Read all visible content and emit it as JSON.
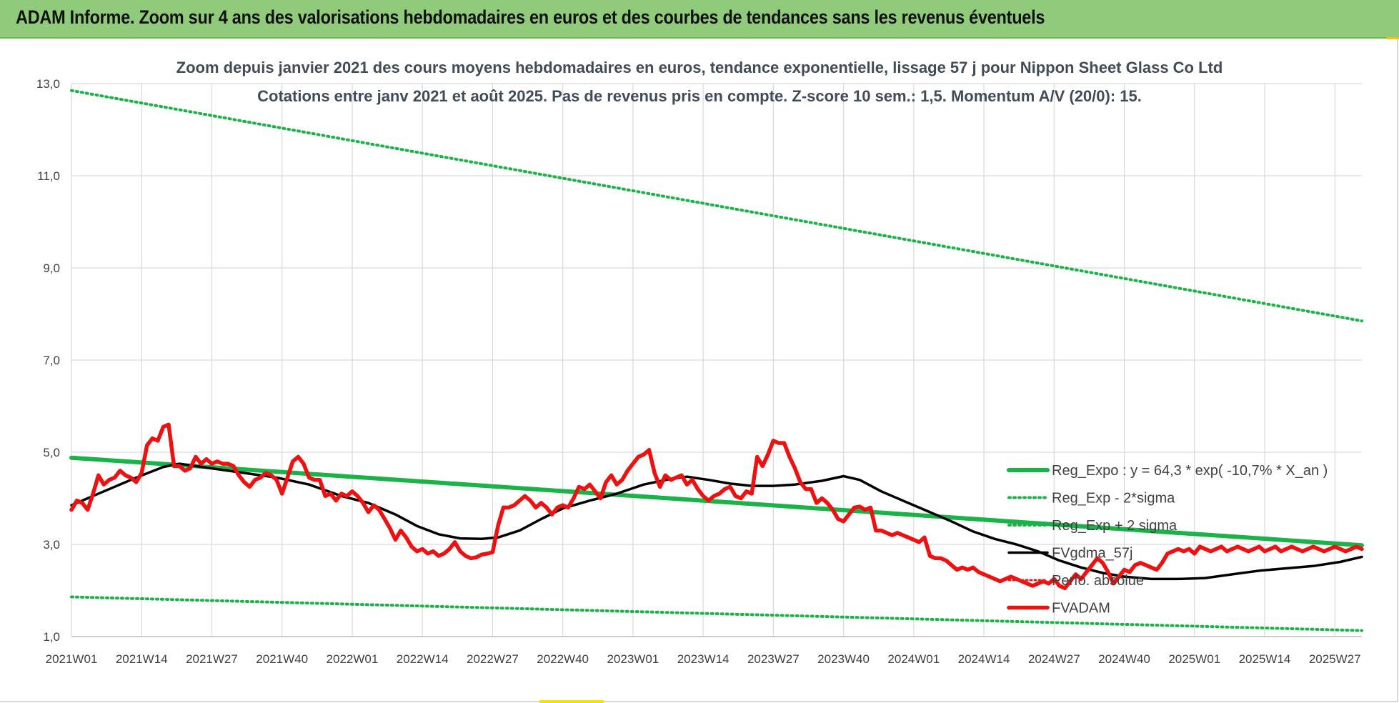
{
  "page": {
    "banner_title": "ADAM Informe. Zoom sur 4 ans des valorisations hebdomadaires en euros et des courbes de tendances sans les revenus éventuels"
  },
  "chart_data": {
    "type": "line",
    "title": "Zoom depuis janvier 2021 des cours moyens hebdomadaires en euros, tendance exponentielle, lissage 57 j pour Nippon Sheet Glass Co Ltd",
    "subtitle": "Cotations entre janv 2021 et août 2025.  Pas de revenus pris en compte. Z-score 10 sem.: 1,5. Momentum A/V (20/0): 15.",
    "xlabel": "",
    "ylabel": "",
    "ylim": [
      1.0,
      13.0
    ],
    "y_ticks": [
      "1,0",
      "3,0",
      "5,0",
      "7,0",
      "9,0",
      "11,0",
      "13,0"
    ],
    "y_tick_values": [
      1,
      3,
      5,
      7,
      9,
      11,
      13
    ],
    "x_ticks": [
      "2021W01",
      "2021W14",
      "2021W27",
      "2021W40",
      "2022W01",
      "2022W14",
      "2022W27",
      "2022W40",
      "2023W01",
      "2023W14",
      "2023W27",
      "2023W40",
      "2024W01",
      "2024W14",
      "2024W27",
      "2024W40",
      "2025W01",
      "2025W14",
      "2025W27"
    ],
    "x_tick_weeks": [
      0,
      13,
      26,
      39,
      52,
      65,
      78,
      91,
      104,
      117,
      130,
      143,
      156,
      169,
      182,
      195,
      208,
      221,
      234
    ],
    "week_count": 240,
    "grid": true,
    "legend_position": "right",
    "colors": {
      "reg_expo": "#1ab347",
      "band": "#1ab347",
      "fvgdma": "#000000",
      "perf": "#e0201a",
      "fvadam": "#ee1111"
    },
    "series": [
      {
        "name": "Reg_Expo : y = 64,3 * exp( -10,7% *  X_an )",
        "style": "solid-thick-green",
        "points": [
          [
            0,
            4.88
          ],
          [
            239,
            2.98
          ]
        ]
      },
      {
        "name": "Reg_Exp - 2*sigma",
        "style": "dotted-green",
        "points": [
          [
            0,
            1.86
          ],
          [
            239,
            1.13
          ]
        ]
      },
      {
        "name": "Reg_Exp + 2 sigma",
        "style": "dotted-green",
        "points": [
          [
            0,
            12.85
          ],
          [
            239,
            7.85
          ]
        ]
      },
      {
        "name": "FVgdma_57j",
        "style": "solid-black",
        "points": [
          [
            0,
            3.85
          ],
          [
            6,
            4.15
          ],
          [
            12,
            4.45
          ],
          [
            17,
            4.68
          ],
          [
            20,
            4.75
          ],
          [
            26,
            4.65
          ],
          [
            32,
            4.55
          ],
          [
            38,
            4.45
          ],
          [
            44,
            4.3
          ],
          [
            50,
            4.05
          ],
          [
            55,
            3.9
          ],
          [
            60,
            3.65
          ],
          [
            64,
            3.4
          ],
          [
            68,
            3.22
          ],
          [
            72,
            3.13
          ],
          [
            76,
            3.12
          ],
          [
            79,
            3.15
          ],
          [
            83,
            3.3
          ],
          [
            87,
            3.55
          ],
          [
            91,
            3.78
          ],
          [
            96,
            3.95
          ],
          [
            101,
            4.1
          ],
          [
            106,
            4.3
          ],
          [
            111,
            4.42
          ],
          [
            114,
            4.47
          ],
          [
            118,
            4.4
          ],
          [
            122,
            4.32
          ],
          [
            126,
            4.27
          ],
          [
            130,
            4.27
          ],
          [
            134,
            4.3
          ],
          [
            139,
            4.38
          ],
          [
            143,
            4.48
          ],
          [
            146,
            4.4
          ],
          [
            150,
            4.15
          ],
          [
            155,
            3.9
          ],
          [
            159,
            3.7
          ],
          [
            163,
            3.5
          ],
          [
            167,
            3.28
          ],
          [
            171,
            3.12
          ],
          [
            175,
            3.0
          ],
          [
            179,
            2.85
          ],
          [
            183,
            2.65
          ],
          [
            187,
            2.5
          ],
          [
            191,
            2.38
          ],
          [
            195,
            2.3
          ],
          [
            200,
            2.25
          ],
          [
            205,
            2.25
          ],
          [
            210,
            2.27
          ],
          [
            215,
            2.35
          ],
          [
            220,
            2.43
          ],
          [
            225,
            2.48
          ],
          [
            230,
            2.53
          ],
          [
            235,
            2.62
          ],
          [
            239,
            2.73
          ]
        ]
      },
      {
        "name": "Perfo. absolue",
        "style": "dotted-red",
        "points": []
      },
      {
        "name": "FVADAM",
        "style": "solid-thick-red",
        "points": [
          [
            0,
            3.75
          ],
          [
            1,
            3.95
          ],
          [
            2,
            3.9
          ],
          [
            3,
            3.75
          ],
          [
            4,
            4.1
          ],
          [
            5,
            4.5
          ],
          [
            6,
            4.3
          ],
          [
            7,
            4.4
          ],
          [
            8,
            4.45
          ],
          [
            9,
            4.6
          ],
          [
            10,
            4.5
          ],
          [
            11,
            4.45
          ],
          [
            12,
            4.35
          ],
          [
            13,
            4.55
          ],
          [
            14,
            5.15
          ],
          [
            15,
            5.3
          ],
          [
            16,
            5.25
          ],
          [
            17,
            5.55
          ],
          [
            18,
            5.6
          ],
          [
            19,
            4.7
          ],
          [
            20,
            4.7
          ],
          [
            21,
            4.6
          ],
          [
            22,
            4.65
          ],
          [
            23,
            4.9
          ],
          [
            24,
            4.75
          ],
          [
            25,
            4.85
          ],
          [
            26,
            4.75
          ],
          [
            27,
            4.8
          ],
          [
            28,
            4.75
          ],
          [
            29,
            4.75
          ],
          [
            30,
            4.7
          ],
          [
            31,
            4.5
          ],
          [
            32,
            4.35
          ],
          [
            33,
            4.25
          ],
          [
            34,
            4.4
          ],
          [
            35,
            4.45
          ],
          [
            36,
            4.55
          ],
          [
            37,
            4.5
          ],
          [
            38,
            4.4
          ],
          [
            39,
            4.1
          ],
          [
            40,
            4.45
          ],
          [
            41,
            4.8
          ],
          [
            42,
            4.9
          ],
          [
            43,
            4.75
          ],
          [
            44,
            4.45
          ],
          [
            45,
            4.4
          ],
          [
            46,
            4.4
          ],
          [
            47,
            4.05
          ],
          [
            48,
            4.1
          ],
          [
            49,
            3.95
          ],
          [
            50,
            4.1
          ],
          [
            51,
            4.05
          ],
          [
            52,
            4.15
          ],
          [
            53,
            4.05
          ],
          [
            54,
            3.9
          ],
          [
            55,
            3.7
          ],
          [
            56,
            3.85
          ],
          [
            57,
            3.75
          ],
          [
            58,
            3.55
          ],
          [
            59,
            3.35
          ],
          [
            60,
            3.1
          ],
          [
            61,
            3.3
          ],
          [
            62,
            3.15
          ],
          [
            63,
            2.95
          ],
          [
            64,
            2.85
          ],
          [
            65,
            2.9
          ],
          [
            66,
            2.8
          ],
          [
            67,
            2.85
          ],
          [
            68,
            2.75
          ],
          [
            69,
            2.8
          ],
          [
            70,
            2.9
          ],
          [
            71,
            3.05
          ],
          [
            72,
            2.85
          ],
          [
            73,
            2.75
          ],
          [
            74,
            2.7
          ],
          [
            75,
            2.72
          ],
          [
            76,
            2.78
          ],
          [
            77,
            2.8
          ],
          [
            78,
            2.83
          ],
          [
            79,
            3.4
          ],
          [
            80,
            3.8
          ],
          [
            81,
            3.8
          ],
          [
            82,
            3.85
          ],
          [
            83,
            3.95
          ],
          [
            84,
            4.05
          ],
          [
            85,
            3.95
          ],
          [
            86,
            3.8
          ],
          [
            87,
            3.9
          ],
          [
            88,
            3.8
          ],
          [
            89,
            3.65
          ],
          [
            90,
            3.8
          ],
          [
            91,
            3.85
          ],
          [
            92,
            3.8
          ],
          [
            93,
            4.0
          ],
          [
            94,
            4.25
          ],
          [
            95,
            4.2
          ],
          [
            96,
            4.3
          ],
          [
            97,
            4.15
          ],
          [
            98,
            4.0
          ],
          [
            99,
            4.35
          ],
          [
            100,
            4.5
          ],
          [
            101,
            4.3
          ],
          [
            102,
            4.4
          ],
          [
            103,
            4.6
          ],
          [
            104,
            4.75
          ],
          [
            105,
            4.9
          ],
          [
            106,
            4.95
          ],
          [
            107,
            5.05
          ],
          [
            108,
            4.55
          ],
          [
            109,
            4.25
          ],
          [
            110,
            4.5
          ],
          [
            111,
            4.4
          ],
          [
            112,
            4.45
          ],
          [
            113,
            4.5
          ],
          [
            114,
            4.3
          ],
          [
            115,
            4.4
          ],
          [
            116,
            4.2
          ],
          [
            117,
            4.05
          ],
          [
            118,
            3.95
          ],
          [
            119,
            4.05
          ],
          [
            120,
            4.1
          ],
          [
            121,
            4.2
          ],
          [
            122,
            4.25
          ],
          [
            123,
            4.05
          ],
          [
            124,
            4.0
          ],
          [
            125,
            4.15
          ],
          [
            126,
            4.1
          ],
          [
            127,
            4.9
          ],
          [
            128,
            4.7
          ],
          [
            129,
            4.95
          ],
          [
            130,
            5.25
          ],
          [
            131,
            5.2
          ],
          [
            132,
            5.2
          ],
          [
            133,
            4.9
          ],
          [
            134,
            4.65
          ],
          [
            135,
            4.35
          ],
          [
            136,
            4.2
          ],
          [
            137,
            4.2
          ],
          [
            138,
            3.9
          ],
          [
            139,
            4.0
          ],
          [
            140,
            3.9
          ],
          [
            141,
            3.75
          ],
          [
            142,
            3.55
          ],
          [
            143,
            3.5
          ],
          [
            144,
            3.65
          ],
          [
            145,
            3.8
          ],
          [
            146,
            3.82
          ],
          [
            147,
            3.75
          ],
          [
            148,
            3.8
          ],
          [
            149,
            3.3
          ],
          [
            150,
            3.3
          ],
          [
            151,
            3.25
          ],
          [
            152,
            3.2
          ],
          [
            153,
            3.25
          ],
          [
            154,
            3.2
          ],
          [
            155,
            3.15
          ],
          [
            156,
            3.1
          ],
          [
            157,
            3.05
          ],
          [
            158,
            3.15
          ],
          [
            159,
            2.75
          ],
          [
            160,
            2.7
          ],
          [
            161,
            2.7
          ],
          [
            162,
            2.65
          ],
          [
            163,
            2.55
          ],
          [
            164,
            2.45
          ],
          [
            165,
            2.5
          ],
          [
            166,
            2.45
          ],
          [
            167,
            2.5
          ],
          [
            168,
            2.4
          ],
          [
            169,
            2.35
          ],
          [
            170,
            2.3
          ],
          [
            171,
            2.25
          ],
          [
            172,
            2.2
          ],
          [
            173,
            2.25
          ],
          [
            174,
            2.3
          ],
          [
            175,
            2.25
          ],
          [
            176,
            2.2
          ],
          [
            177,
            2.15
          ],
          [
            178,
            2.1
          ],
          [
            179,
            2.15
          ],
          [
            180,
            2.2
          ],
          [
            181,
            2.15
          ],
          [
            182,
            2.25
          ],
          [
            183,
            2.1
          ],
          [
            184,
            2.05
          ],
          [
            185,
            2.2
          ],
          [
            186,
            2.35
          ],
          [
            187,
            2.25
          ],
          [
            188,
            2.4
          ],
          [
            189,
            2.55
          ],
          [
            190,
            2.7
          ],
          [
            191,
            2.6
          ],
          [
            192,
            2.4
          ],
          [
            193,
            2.15
          ],
          [
            194,
            2.3
          ],
          [
            195,
            2.45
          ],
          [
            196,
            2.4
          ],
          [
            197,
            2.55
          ],
          [
            198,
            2.6
          ],
          [
            199,
            2.55
          ],
          [
            200,
            2.5
          ],
          [
            201,
            2.45
          ],
          [
            202,
            2.6
          ],
          [
            203,
            2.8
          ],
          [
            204,
            2.85
          ],
          [
            205,
            2.9
          ],
          [
            206,
            2.85
          ],
          [
            207,
            2.9
          ],
          [
            208,
            2.8
          ],
          [
            209,
            2.95
          ],
          [
            210,
            2.9
          ],
          [
            211,
            2.85
          ],
          [
            212,
            2.9
          ],
          [
            213,
            2.95
          ],
          [
            214,
            2.85
          ],
          [
            215,
            2.9
          ],
          [
            216,
            2.95
          ],
          [
            217,
            2.9
          ],
          [
            218,
            2.85
          ],
          [
            219,
            2.9
          ],
          [
            220,
            2.95
          ],
          [
            221,
            2.85
          ],
          [
            222,
            2.9
          ],
          [
            223,
            2.95
          ],
          [
            224,
            2.85
          ],
          [
            225,
            2.9
          ],
          [
            226,
            2.95
          ],
          [
            227,
            2.9
          ],
          [
            228,
            2.85
          ],
          [
            229,
            2.9
          ],
          [
            230,
            2.95
          ],
          [
            231,
            2.9
          ],
          [
            232,
            2.85
          ],
          [
            233,
            2.9
          ],
          [
            234,
            2.95
          ],
          [
            235,
            2.9
          ],
          [
            236,
            2.85
          ],
          [
            237,
            2.9
          ],
          [
            238,
            2.95
          ],
          [
            239,
            2.9
          ]
        ]
      }
    ]
  }
}
